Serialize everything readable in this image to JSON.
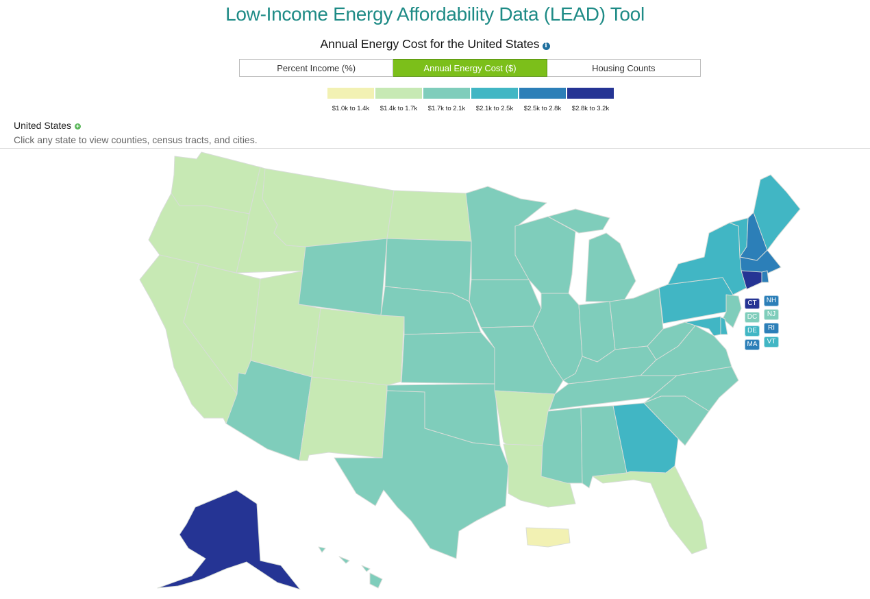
{
  "header": {
    "title": "Low-Income Energy Affordability Data (LEAD) Tool",
    "subtitle": "Annual Energy Cost for the United States",
    "info_icon": "info-circle-icon"
  },
  "tabs": [
    {
      "label": "Percent Income (%)",
      "active": false
    },
    {
      "label": "Annual Energy Cost ($)",
      "active": true
    },
    {
      "label": "Housing Counts",
      "active": false
    }
  ],
  "legend": [
    {
      "label": "$1.0k to 1.4k",
      "color": "#f2f1b3"
    },
    {
      "label": "$1.4k to 1.7k",
      "color": "#c7e9b4"
    },
    {
      "label": "$1.7k to 2.1k",
      "color": "#7fcdbb"
    },
    {
      "label": "$2.1k to 2.5k",
      "color": "#41b6c4"
    },
    {
      "label": "$2.5k to 2.8k",
      "color": "#2c7fb8"
    },
    {
      "label": "$2.8k to 3.2k",
      "color": "#253494"
    }
  ],
  "breadcrumb": {
    "label": "United States",
    "icon": "plus-circle-icon"
  },
  "hint": "Click any state to view counties, census tracts, and cities.",
  "small_states": [
    {
      "abbr": "CT",
      "bin": 5
    },
    {
      "abbr": "NH",
      "bin": 4
    },
    {
      "abbr": "DC",
      "bin": 2
    },
    {
      "abbr": "NJ",
      "bin": 2
    },
    {
      "abbr": "DE",
      "bin": 3
    },
    {
      "abbr": "RI",
      "bin": 4
    },
    {
      "abbr": "MA",
      "bin": 4
    },
    {
      "abbr": "VT",
      "bin": 3
    }
  ],
  "states": {
    "WA": 1,
    "OR": 1,
    "CA": 1,
    "NV": 1,
    "ID": 1,
    "MT": 1,
    "UT": 1,
    "AZ": 2,
    "NM": 1,
    "WY": 2,
    "CO": 1,
    "ND": 1,
    "SD": 2,
    "NE": 2,
    "KS": 2,
    "OK": 2,
    "TX": 2,
    "MN": 2,
    "IA": 2,
    "MO": 2,
    "AR": 1,
    "LA": 1,
    "WI": 2,
    "IL": 2,
    "MI": 2,
    "IN": 2,
    "OH": 2,
    "KY": 2,
    "TN": 2,
    "MS": 2,
    "AL": 2,
    "GA": 3,
    "FL": 1,
    "SC": 2,
    "NC": 2,
    "VA": 2,
    "WV": 2,
    "PA": 3,
    "NY": 3,
    "VT": 3,
    "NH": 4,
    "ME": 3,
    "MA": 4,
    "RI": 4,
    "CT": 5,
    "NJ": 2,
    "DE": 3,
    "MD": 3,
    "DC": 2,
    "AK": 5,
    "HI": 2,
    "PR": 0
  }
}
